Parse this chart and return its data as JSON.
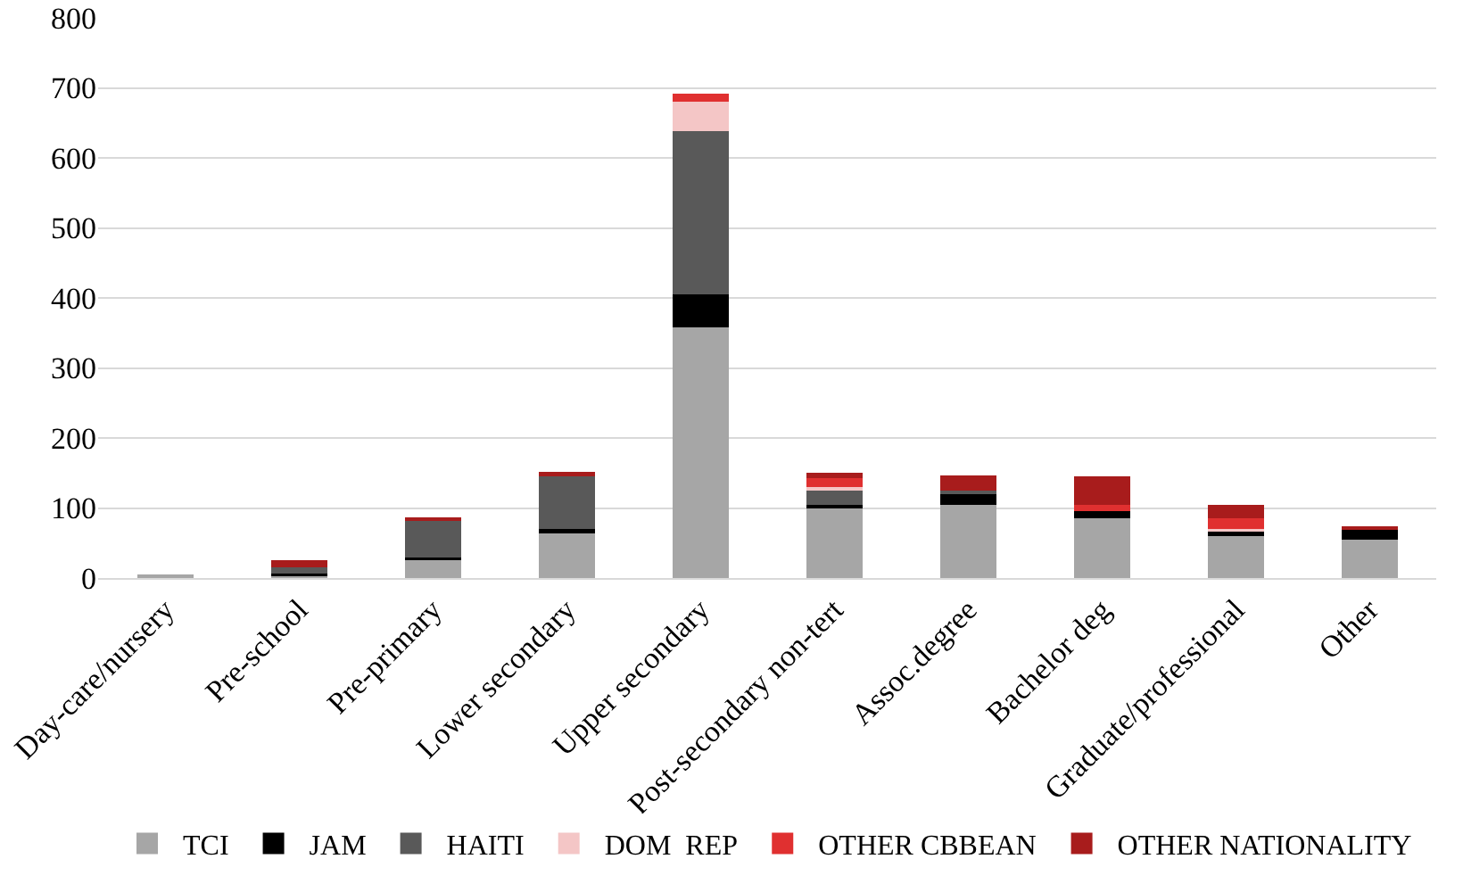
{
  "chart_data": {
    "type": "bar",
    "stacked": true,
    "categories": [
      "Day-care/nursery",
      "Pre-school",
      "Pre-primary",
      "Lower secondary",
      "Upper secondary",
      "Post-secondary non-tert",
      "Assoc.degree",
      "Bachelor deg",
      "Graduate/professional",
      "Other"
    ],
    "series": [
      {
        "name": "TCI",
        "color": "#a6a6a6",
        "values": [
          3,
          5,
          27,
          65,
          358,
          100,
          105,
          85,
          60,
          55
        ]
      },
      {
        "name": "JAM",
        "color": "#000000",
        "values": [
          0,
          2,
          2,
          5,
          47,
          5,
          15,
          10,
          8,
          15
        ]
      },
      {
        "name": "HAITI",
        "color": "#595959",
        "values": [
          0,
          8,
          55,
          77,
          233,
          20,
          5,
          0,
          0,
          0
        ]
      },
      {
        "name": "DOM  REP",
        "color": "#f4c6c6",
        "values": [
          0,
          0,
          0,
          0,
          42,
          5,
          0,
          0,
          2,
          0
        ]
      },
      {
        "name": "OTHER CBBEAN",
        "color": "#e03030",
        "values": [
          0,
          0,
          0,
          0,
          12,
          15,
          0,
          10,
          15,
          0
        ]
      },
      {
        "name": "OTHER NATIONALITY",
        "color": "#a81c1c",
        "values": [
          0,
          10,
          3,
          5,
          0,
          5,
          22,
          40,
          20,
          3
        ]
      }
    ],
    "ylim": [
      0,
      800
    ],
    "yticks": [
      0,
      100,
      200,
      300,
      400,
      500,
      600,
      700,
      800
    ],
    "grid": "y",
    "legend": "bottom"
  }
}
